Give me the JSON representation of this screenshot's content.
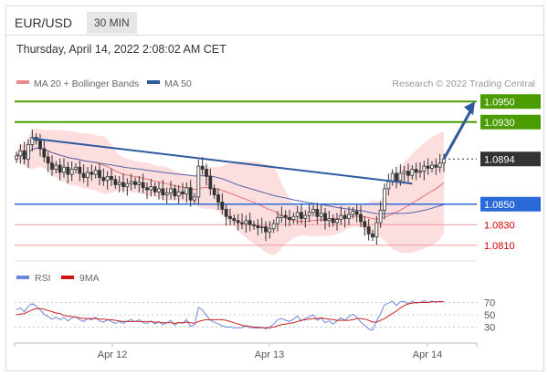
{
  "header": {
    "symbol": "EUR/USD",
    "timeframe": "30 MIN"
  },
  "subheader": {
    "datetime": "Thursday, April 14, 2022 2:08:02 AM CET"
  },
  "legend": {
    "ma20_bb": "MA 20 + Bollinger Bands",
    "ma50": "MA 50",
    "credit": "Research © 2022 Trading Central"
  },
  "rsi_legend": {
    "rsi": "RSI",
    "ma9": "9MA"
  },
  "colors": {
    "up_green": "#4a9c00",
    "blue_level": "#2a6ad8",
    "red_level": "#d40000",
    "trend_blue": "#2f5a9e",
    "bb_fill": "#fcd3d3",
    "ma20": "#e87070",
    "ma50": "#5566aa",
    "candle": "#333333",
    "current_dark": "#333333",
    "rsi_line": "#6b88e0",
    "rsi_ma": "#cc2222"
  },
  "chart_data": {
    "type": "candlestick",
    "symbol": "EUR/USD",
    "timeframe": "30 MIN",
    "x_ticks": [
      "Apr 12",
      "Apr 13",
      "Apr 14"
    ],
    "current_price": 1.0894,
    "price_levels": [
      {
        "label": "1.0950",
        "value": 1.095,
        "kind": "resistance"
      },
      {
        "label": "1.0930",
        "value": 1.093,
        "kind": "resistance"
      },
      {
        "label": "1.0894",
        "value": 1.0894,
        "kind": "current"
      },
      {
        "label": "1.0850",
        "value": 1.085,
        "kind": "pivot"
      },
      {
        "label": "1.0830",
        "value": 1.083,
        "kind": "support"
      },
      {
        "label": "1.0810",
        "value": 1.081,
        "kind": "support"
      }
    ],
    "price_range": [
      1.08,
      1.096
    ],
    "closes": [
      1.0897,
      1.0902,
      1.0894,
      1.0908,
      1.0915,
      1.0912,
      1.0904,
      1.0896,
      1.089,
      1.0884,
      1.0888,
      1.0881,
      1.0886,
      1.0879,
      1.0884,
      1.0886,
      1.088,
      1.0876,
      1.0881,
      1.0879,
      1.0883,
      1.0876,
      1.0873,
      1.0877,
      1.0874,
      1.0869,
      1.0871,
      1.0867,
      1.087,
      1.0872,
      1.0869,
      1.0871,
      1.0866,
      1.0864,
      1.0867,
      1.0862,
      1.0865,
      1.0859,
      1.0861,
      1.0865,
      1.0858,
      1.0862,
      1.086,
      1.0866,
      1.0854,
      1.0857,
      1.0887,
      1.0884,
      1.0877,
      1.0865,
      1.0859,
      1.0852,
      1.0845,
      1.0838,
      1.0836,
      1.0834,
      1.0832,
      1.0831,
      1.0834,
      1.083,
      1.0829,
      1.0827,
      1.0828,
      1.0823,
      1.0826,
      1.0831,
      1.0837,
      1.0839,
      1.0837,
      1.0835,
      1.0838,
      1.0842,
      1.0836,
      1.0839,
      1.0842,
      1.0845,
      1.0838,
      1.0841,
      1.0834,
      1.0836,
      1.0832,
      1.0835,
      1.0839,
      1.0836,
      1.084,
      1.0843,
      1.084,
      1.0833,
      1.0828,
      1.0821,
      1.0818,
      1.0832,
      1.0844,
      1.0865,
      1.0872,
      1.088,
      1.0873,
      1.088,
      1.0882,
      1.0878,
      1.0884,
      1.0881,
      1.0882,
      1.0887,
      1.0885,
      1.0888,
      1.0886,
      1.089,
      1.0894
    ],
    "trendline": {
      "from_index": 4,
      "from_value": 1.0914,
      "to_index": 100,
      "to_value": 1.087
    },
    "projection_target": 1.095,
    "rsi": {
      "levels": [
        70,
        50,
        30
      ],
      "values": [
        58,
        61,
        55,
        64,
        68,
        64,
        58,
        51,
        47,
        43,
        46,
        42,
        46,
        40,
        45,
        47,
        42,
        39,
        44,
        42,
        46,
        40,
        38,
        42,
        39,
        36,
        39,
        36,
        40,
        42,
        39,
        42,
        37,
        36,
        40,
        35,
        39,
        34,
        37,
        41,
        33,
        38,
        36,
        42,
        31,
        34,
        62,
        58,
        49,
        41,
        38,
        35,
        32,
        30,
        30,
        29,
        29,
        29,
        33,
        29,
        29,
        28,
        30,
        27,
        30,
        35,
        42,
        44,
        41,
        39,
        43,
        48,
        40,
        44,
        47,
        50,
        41,
        45,
        37,
        40,
        35,
        40,
        45,
        41,
        47,
        51,
        46,
        38,
        33,
        27,
        25,
        40,
        52,
        66,
        69,
        72,
        65,
        71,
        72,
        67,
        72,
        69,
        70,
        73,
        70,
        72,
        70,
        72,
        71
      ],
      "ma9": [
        50,
        51,
        52,
        55,
        58,
        60,
        60,
        59,
        57,
        55,
        53,
        52,
        49,
        48,
        47,
        46,
        45,
        44,
        44,
        44,
        44,
        43,
        43,
        42,
        42,
        41,
        40,
        39,
        39,
        39,
        39,
        39,
        39,
        39,
        39,
        38,
        38,
        37,
        37,
        37,
        36,
        37,
        37,
        38,
        37,
        36,
        39,
        41,
        42,
        42,
        42,
        42,
        42,
        41,
        39,
        37,
        35,
        33,
        31,
        31,
        30,
        30,
        29,
        29,
        29,
        30,
        32,
        34,
        35,
        36,
        37,
        39,
        41,
        42,
        43,
        44,
        44,
        45,
        44,
        43,
        42,
        41,
        41,
        41,
        41,
        42,
        44,
        44,
        43,
        41,
        38,
        38,
        41,
        44,
        48,
        52,
        56,
        61,
        65,
        68,
        69,
        70,
        70,
        70,
        70,
        71,
        71,
        71,
        71
      ]
    }
  }
}
